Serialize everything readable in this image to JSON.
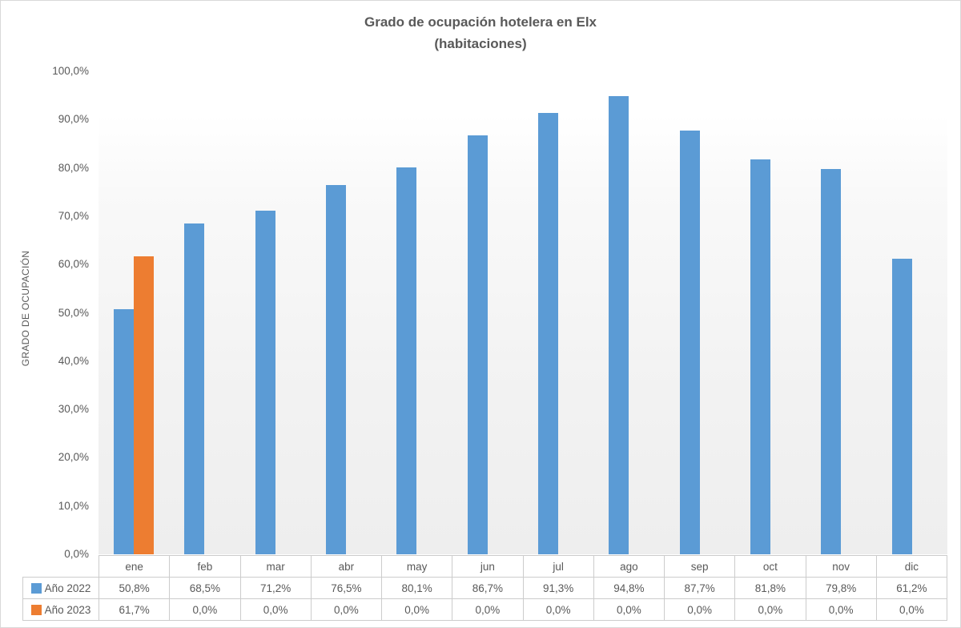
{
  "chart_data": {
    "type": "bar",
    "title": "Grado de ocupación hotelera en Elx",
    "subtitle": "(habitaciones)",
    "ylabel": "GRADO DE OCUPACIÓN",
    "xlabel": "",
    "ylim": [
      0,
      100
    ],
    "grid": false,
    "legend_position": "table-left",
    "categories": [
      "ene",
      "feb",
      "mar",
      "abr",
      "may",
      "jun",
      "jul",
      "ago",
      "sep",
      "oct",
      "nov",
      "dic"
    ],
    "series": [
      {
        "name": "Año 2022",
        "color": "#5B9BD5",
        "values": [
          50.8,
          68.5,
          71.2,
          76.5,
          80.1,
          86.7,
          91.3,
          94.8,
          87.7,
          81.8,
          79.8,
          61.2
        ],
        "labels": [
          "50,8%",
          "68,5%",
          "71,2%",
          "76,5%",
          "80,1%",
          "86,7%",
          "91,3%",
          "94,8%",
          "87,7%",
          "81,8%",
          "79,8%",
          "61,2%"
        ]
      },
      {
        "name": "Año 2023",
        "color": "#ED7D31",
        "values": [
          61.7,
          0,
          0,
          0,
          0,
          0,
          0,
          0,
          0,
          0,
          0,
          0
        ],
        "labels": [
          "61,7%",
          "0,0%",
          "0,0%",
          "0,0%",
          "0,0%",
          "0,0%",
          "0,0%",
          "0,0%",
          "0,0%",
          "0,0%",
          "0,0%",
          "0,0%"
        ]
      }
    ],
    "y_tick_labels": [
      "100,0%",
      "90,0%",
      "80,0%",
      "70,0%",
      "60,0%",
      "50,0%",
      "40,0%",
      "30,0%",
      "20,0%",
      "10,0%",
      "0,0%"
    ],
    "y_tick_values": [
      100,
      90,
      80,
      70,
      60,
      50,
      40,
      30,
      20,
      10,
      0
    ]
  }
}
